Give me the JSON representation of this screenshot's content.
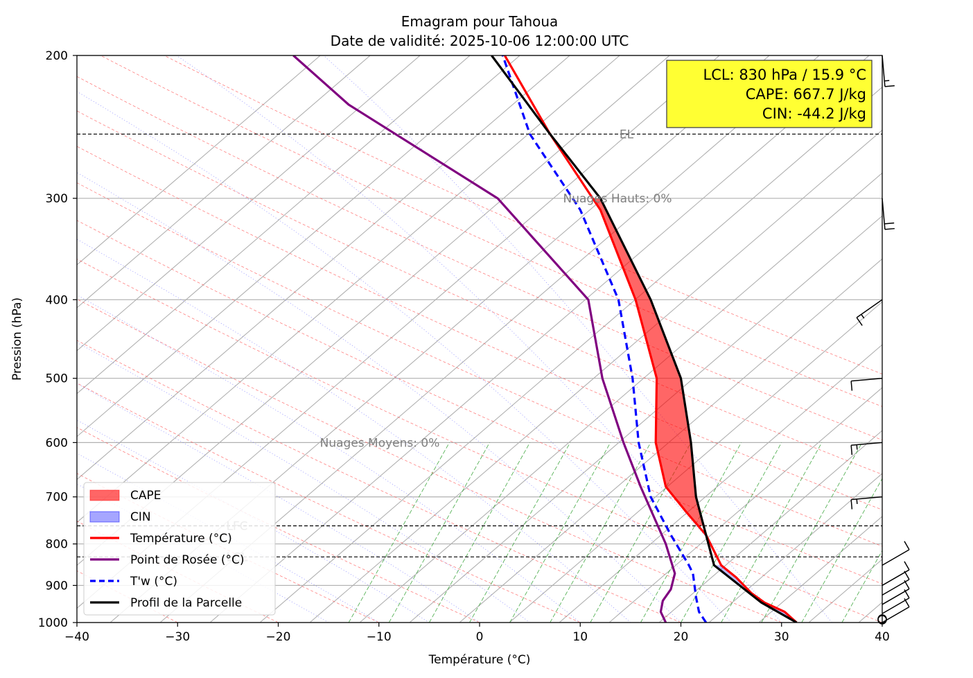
{
  "chart_data": {
    "type": "line",
    "title": "Emagram pour Tahoua",
    "subtitle": "Date de validité: 2025-10-06 12:00:00 UTC",
    "xlabel": "Température (°C)",
    "ylabel": "Pression (hPa)",
    "xlim": [
      -40,
      40
    ],
    "ylim": [
      1000,
      200
    ],
    "y_scale": "log",
    "x_ticks": [
      "−40",
      "−30",
      "−20",
      "−10",
      "0",
      "10",
      "20",
      "30",
      "40"
    ],
    "y_ticks": [
      "1000",
      "900",
      "800",
      "700",
      "600",
      "500",
      "400",
      "300",
      "200"
    ],
    "grid": true,
    "legend_position": "lower-left",
    "series": [
      {
        "name": "Température (°C)",
        "color": "#ff0000",
        "style": "solid",
        "points": [
          [
            31.5,
            1000
          ],
          [
            30.3,
            970
          ],
          [
            28.3,
            945
          ],
          [
            27,
            920
          ],
          [
            25.5,
            880
          ],
          [
            24,
            850
          ],
          [
            22.5,
            780
          ],
          [
            20.5,
            730
          ],
          [
            18.5,
            680
          ],
          [
            17.5,
            600
          ],
          [
            17.6,
            500
          ],
          [
            15.5,
            400
          ],
          [
            12,
            310
          ],
          [
            7,
            250
          ],
          [
            2.5,
            200
          ]
        ]
      },
      {
        "name": "Point de Rosée (°C)",
        "color": "#800080",
        "style": "solid",
        "points": [
          [
            18.5,
            1000
          ],
          [
            18,
            970
          ],
          [
            18.2,
            940
          ],
          [
            19,
            910
          ],
          [
            19.4,
            870
          ],
          [
            18.5,
            800
          ],
          [
            16,
            680
          ],
          [
            14.3,
            600
          ],
          [
            12.2,
            500
          ],
          [
            10.8,
            400
          ],
          [
            1.8,
            300
          ],
          [
            -13,
            230
          ],
          [
            -18.5,
            200
          ]
        ]
      },
      {
        "name": "T'w (°C)",
        "color": "#0000ff",
        "style": "dashed",
        "points": [
          [
            22.5,
            1000
          ],
          [
            21.8,
            970
          ],
          [
            21.5,
            930
          ],
          [
            21.2,
            870
          ],
          [
            20.8,
            850
          ],
          [
            19,
            780
          ],
          [
            17,
            700
          ],
          [
            15.8,
            600
          ],
          [
            15.2,
            500
          ],
          [
            13.8,
            400
          ],
          [
            10,
            310
          ],
          [
            5,
            250
          ],
          [
            2.3,
            200
          ]
        ]
      },
      {
        "name": "Profil de la Parcelle",
        "color": "#000000",
        "style": "solid",
        "points": [
          [
            31.5,
            1000
          ],
          [
            28,
            945
          ],
          [
            23.3,
            850
          ],
          [
            22.5,
            780
          ],
          [
            21.5,
            700
          ],
          [
            21,
            600
          ],
          [
            20,
            500
          ],
          [
            17,
            400
          ],
          [
            12,
            300
          ],
          [
            7,
            250
          ],
          [
            1.2,
            200
          ]
        ]
      }
    ],
    "levels": [
      {
        "label": "EL",
        "pressure": 250
      },
      {
        "label": "LFC",
        "pressure": 760
      },
      {
        "label": "LCL",
        "pressure": 830
      }
    ],
    "annotations": [
      {
        "text": "Nuages Hauts: 0%",
        "x": 14,
        "pressure": 300
      },
      {
        "text": "Nuages Moyens: 0%",
        "x": -10,
        "pressure": 600
      }
    ],
    "legend": [
      {
        "label": "CAPE",
        "kind": "patch",
        "color": "#ff0000"
      },
      {
        "label": "CIN",
        "kind": "patch",
        "color": "#0000ff"
      },
      {
        "label": "Température (°C)",
        "kind": "line",
        "color": "#ff0000"
      },
      {
        "label": "Point de Rosée (°C)",
        "kind": "line",
        "color": "#800080"
      },
      {
        "label": "T'w (°C)",
        "kind": "dash",
        "color": "#0000ff"
      },
      {
        "label": "Profil de la Parcelle",
        "kind": "line",
        "color": "#000000"
      }
    ],
    "info_box": {
      "lines": [
        "LCL: 830 hPa / 15.9 °C",
        "CAPE: 667.7 J/kg",
        "CIN: -44.2 J/kg"
      ],
      "background": "#ffff33"
    },
    "wind_barbs": [
      {
        "pressure": 200,
        "speed_kt": 15
      },
      {
        "pressure": 300,
        "speed_kt": 20
      },
      {
        "pressure": 400,
        "speed_kt": 15
      },
      {
        "pressure": 500,
        "speed_kt": 10
      },
      {
        "pressure": 600,
        "speed_kt": 15
      },
      {
        "pressure": 700,
        "speed_kt": 15
      },
      {
        "pressure": 850,
        "speed_kt": 10
      },
      {
        "pressure": 900,
        "speed_kt": 10
      },
      {
        "pressure": 925,
        "speed_kt": 10
      },
      {
        "pressure": 950,
        "speed_kt": 10
      },
      {
        "pressure": 975,
        "speed_kt": 10
      },
      {
        "pressure": 1000,
        "speed_kt": 10
      }
    ]
  }
}
